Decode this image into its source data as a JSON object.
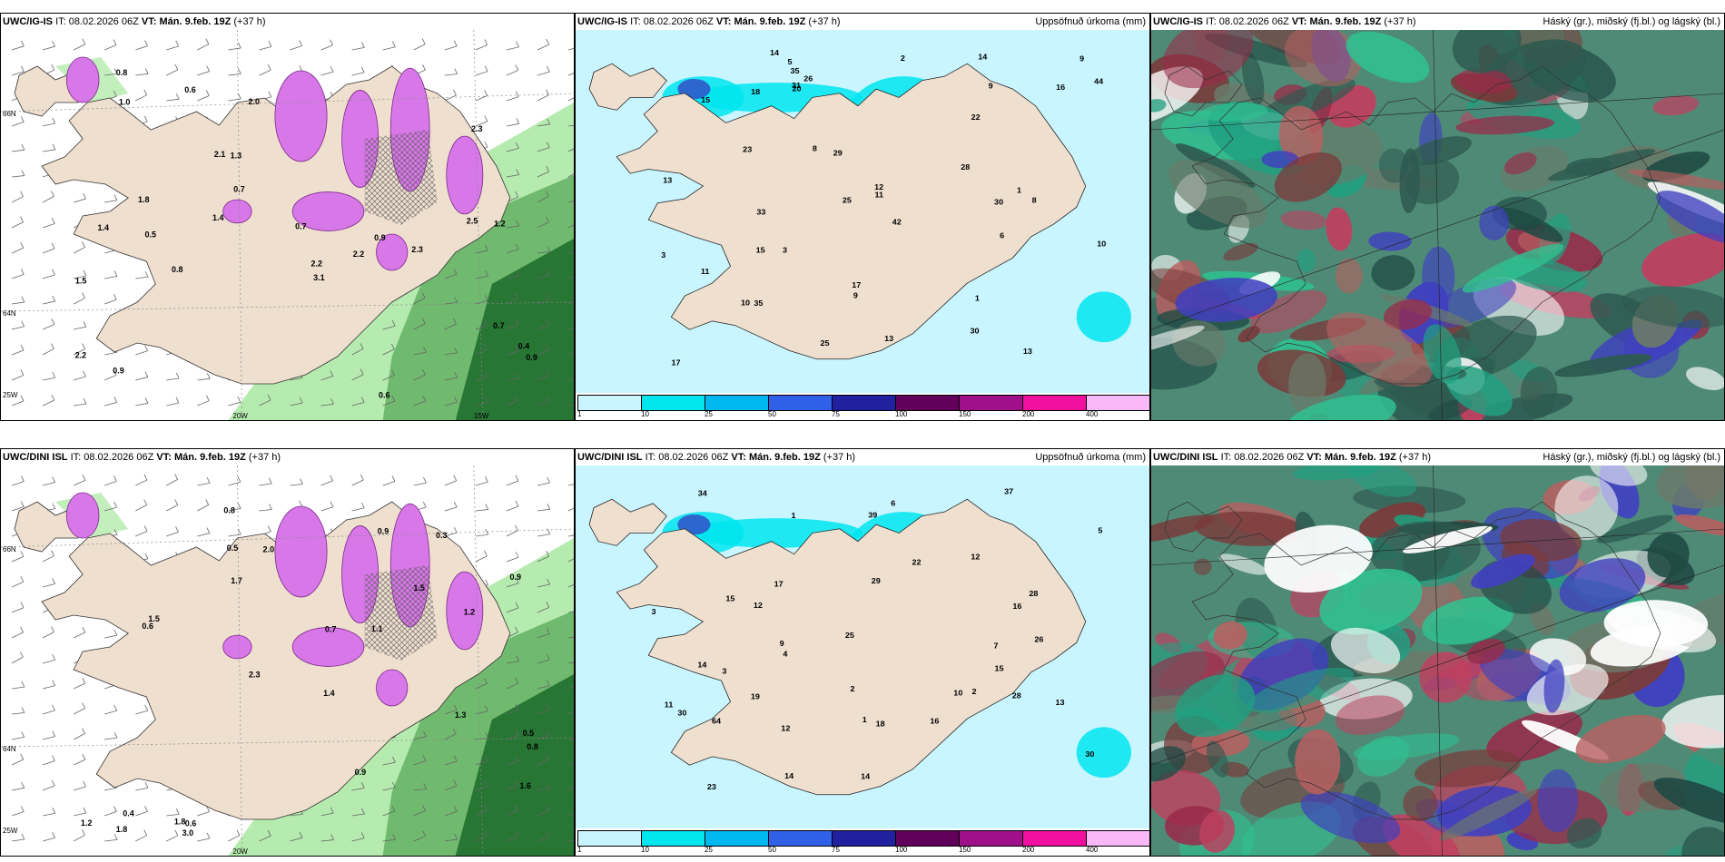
{
  "panels": [
    {
      "model": "UWC/IG-IS",
      "it_label": "IT:",
      "it_value": "08.02.2026 06Z",
      "vt_label": "VT:",
      "vt_value": "Mán. 9.feb. 19Z",
      "lead": "(+37 h)",
      "right_title": "",
      "type": "wind",
      "axis": [
        "66N",
        "64N",
        "25W",
        "20W",
        "15W"
      ],
      "values": [
        "2.3",
        "3.1",
        "2.0",
        "1.8",
        "0.7",
        "1.2",
        "2.5",
        "0.9",
        "1.3",
        "0.6",
        "0.7",
        "0.4",
        "2.2",
        "1.4",
        "0.5",
        "2.1",
        "2.2",
        "0.8",
        "0.9",
        "0.8",
        "0.7",
        "1.5",
        "1.0",
        "1.4",
        "0.6",
        "2.3",
        "2.2",
        "0.9"
      ]
    },
    {
      "model": "UWC/IG-IS",
      "it_label": "IT:",
      "it_value": "08.02.2026 06Z",
      "vt_label": "VT:",
      "vt_value": "Mán. 9.feb. 19Z",
      "lead": "(+37 h)",
      "right_title": "Uppsöfnuð úrkoma (mm)",
      "type": "precip",
      "colorbar": [
        "1",
        "10",
        "25",
        "50",
        "75",
        "100",
        "150",
        "200",
        "400"
      ],
      "values": [
        "6",
        "9",
        "3",
        "3",
        "8",
        "10",
        "11",
        "14",
        "18",
        "35",
        "33",
        "42",
        "44",
        "26",
        "15",
        "20",
        "31",
        "29",
        "8",
        "13",
        "28",
        "30",
        "35",
        "15",
        "25",
        "16",
        "12",
        "10",
        "22",
        "9",
        "9",
        "13",
        "14",
        "17",
        "5",
        "11",
        "2",
        "1",
        "1",
        "17",
        "13",
        "23",
        "25",
        "30"
      ]
    },
    {
      "model": "UWC/IG-IS",
      "it_label": "IT:",
      "it_value": "08.02.2026 06Z",
      "vt_label": "VT:",
      "vt_value": "Mán. 9.feb. 19Z",
      "lead": "(+37 h)",
      "right_title": "Háský (gr.), miðský (fj.bl.) og lágský (bl.)",
      "type": "cloud"
    },
    {
      "model": "UWC/DINI ISL",
      "it_label": "IT:",
      "it_value": "08.02.2026 06Z",
      "vt_label": "VT:",
      "vt_value": "Mán. 9.feb. 19Z",
      "lead": "(+37 h)",
      "right_title": "",
      "type": "wind",
      "axis": [
        "66N",
        "64N",
        "25W",
        "20W"
      ],
      "values": [
        "2.3",
        "2.0",
        "0.9",
        "1.2",
        "0.8",
        "1.3",
        "0.5",
        "1.7",
        "1.8",
        "0.4",
        "0.3",
        "0.6",
        "0.7",
        "1.2",
        "0.9",
        "1.1",
        "0.5",
        "1.6",
        "1.5",
        "1.8",
        "1.4",
        "1.5",
        "0.9",
        "0.8",
        "3.0",
        "0.6"
      ]
    },
    {
      "model": "UWC/DINI ISL",
      "it_label": "IT:",
      "it_value": "08.02.2026 06Z",
      "vt_label": "VT:",
      "vt_value": "Mán. 9.feb. 19Z",
      "lead": "(+37 h)",
      "right_title": "Uppsöfnuð úrkoma (mm)",
      "type": "precip",
      "colorbar": [
        "1",
        "10",
        "25",
        "50",
        "75",
        "100",
        "150",
        "200",
        "400"
      ],
      "values": [
        "10",
        "9",
        "12",
        "13",
        "12",
        "14",
        "5",
        "7",
        "11",
        "12",
        "28",
        "25",
        "30",
        "34",
        "22",
        "26",
        "23",
        "28",
        "37",
        "64",
        "39",
        "19",
        "18",
        "30",
        "16",
        "29",
        "14",
        "3",
        "1",
        "2",
        "4",
        "16",
        "15",
        "14",
        "15",
        "3",
        "6",
        "2",
        "1",
        "17"
      ]
    },
    {
      "model": "UWC/DINI ISL",
      "it_label": "IT:",
      "it_value": "08.02.2026 06Z",
      "vt_label": "VT:",
      "vt_value": "Mán. 9.feb. 19Z",
      "lead": "(+37 h)",
      "right_title": "Háský (gr.), miðský (fj.bl.) og lágský (bl.)",
      "type": "cloud"
    }
  ],
  "colors": {
    "land": "#efdfcf",
    "sea_light": "#c8f5ff",
    "precip_cyan": "#00e5ee",
    "wind_green": "#a8e8a0",
    "wind_dark": "#1a6a2a",
    "snow_magenta": "#d878e8",
    "cloud_dark": "#2e5a50"
  }
}
